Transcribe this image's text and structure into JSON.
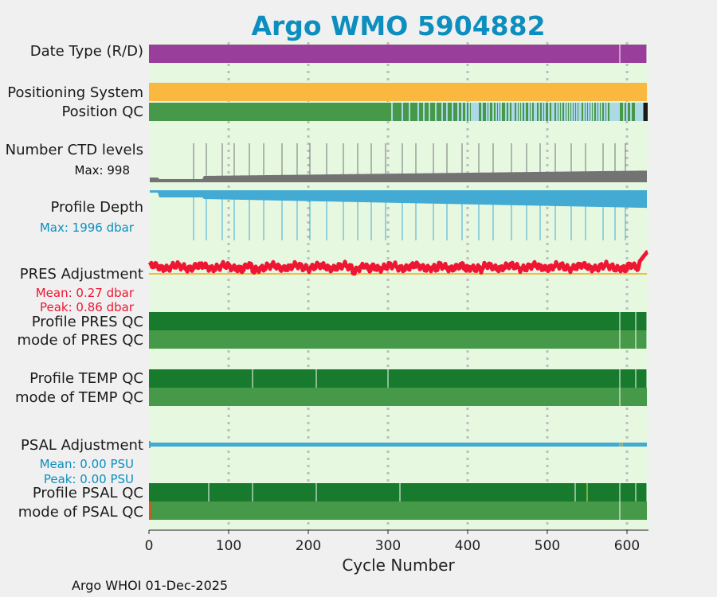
{
  "chart_data": {
    "type": "timeline",
    "title": "Argo WMO 5904882",
    "xlabel": "Cycle Number",
    "xlim": [
      0,
      627
    ],
    "xticks": [
      "0",
      "100",
      "200",
      "300",
      "400",
      "500",
      "600"
    ],
    "footer": "Argo WHOI 01-Dec-2025",
    "grid": "dotted vertical at each x tick",
    "colors": {
      "title": "#0c8ebf",
      "background": "#e6f8e0",
      "date_type": "#9a3e9b",
      "positioning": "#fbb841",
      "qc_good": "#47994a",
      "qc_dark": "#177a2d",
      "qc_light": "#add8e6",
      "ctd": "#737373",
      "depth": "#43aad3",
      "pres": "#ee1633",
      "pres_baseline": "#f5b942",
      "psal": "#43aad3",
      "max_depth_label": "#0c8ebf",
      "pres_label": "#ee1633"
    },
    "rows": {
      "date_type": {
        "label": "Date Type (R/D)"
      },
      "positioning": {
        "label": "Positioning System"
      },
      "position_qc": {
        "label": "Position QC"
      },
      "ctd_levels": {
        "label": "Number CTD levels",
        "max_label": "Max: 998",
        "max": 998
      },
      "profile_depth": {
        "label": "Profile Depth",
        "max_label": "Max: 1996 dbar",
        "max": 1996
      },
      "pres_adjustment": {
        "label": "PRES Adjustment",
        "mean_label": "Mean: 0.27 dbar",
        "peak_label": "Peak: 0.86 dbar",
        "mean": 0.27,
        "peak": 0.86
      },
      "profile_pres_qc": {
        "label": "Profile PRES QC"
      },
      "mode_pres_qc": {
        "label": "mode of PRES QC"
      },
      "profile_temp_qc": {
        "label": "Profile TEMP QC"
      },
      "mode_temp_qc": {
        "label": "mode of TEMP QC"
      },
      "psal_adjustment": {
        "label": "PSAL Adjustment",
        "mean_label": "Mean: 0.00 PSU",
        "peak_label": "Peak: 0.00 PSU",
        "mean": 0.0,
        "peak": 0.0
      },
      "profile_psal_qc": {
        "label": "Profile PSAL QC"
      },
      "mode_psal_qc": {
        "label": "mode of PSAL QC"
      }
    },
    "date_type_gaps": [
      591,
      625
    ],
    "pres_qc_gaps": [
      591,
      611,
      625
    ],
    "temp_qc_gaps": [
      130,
      210,
      300,
      591,
      611,
      625
    ],
    "psal_qc_gaps": [
      75,
      130,
      210,
      315,
      535,
      591,
      611,
      625
    ],
    "psal_qc_yellow": [
      550
    ],
    "position_qc_light_cycles": [
      305,
      318,
      327,
      338,
      345,
      352,
      360,
      368,
      374,
      381,
      388,
      393,
      398,
      402,
      408,
      418,
      424,
      427,
      432,
      436,
      439,
      442,
      448,
      452,
      456,
      458,
      462,
      465,
      468,
      472,
      477,
      480,
      484,
      486,
      490,
      494,
      497,
      502,
      506,
      508,
      512,
      515,
      518,
      522,
      525,
      528,
      531,
      534,
      537,
      540,
      542,
      546,
      549,
      552,
      555,
      558,
      562,
      565,
      568,
      572,
      575,
      580,
      586,
      590,
      596,
      600,
      605,
      611
    ],
    "position_qc_light_ranges": [
      [
        404,
        414
      ],
      [
        578,
        590
      ],
      [
        612,
        620
      ]
    ],
    "position_qc_dark_ranges": [
      [
        621,
        626
      ]
    ],
    "ctd_spikes": [
      56,
      72,
      92,
      107,
      126,
      144,
      167,
      186,
      202,
      223,
      244,
      262,
      279,
      297,
      318,
      335,
      357,
      374,
      393,
      414,
      432,
      455,
      474,
      491,
      510,
      530,
      548,
      570,
      585,
      598
    ],
    "depth_spikes": [
      56,
      72,
      92,
      107,
      126,
      144,
      167,
      186,
      202,
      223,
      244,
      262,
      279,
      297,
      318,
      335,
      357,
      374,
      393,
      414,
      432,
      455,
      474,
      491,
      510,
      530,
      548,
      570,
      585,
      598
    ],
    "pres_dips": [
      [
        118,
        0.12
      ],
      [
        132,
        0.08
      ],
      [
        258,
        0.1
      ],
      [
        276,
        0.07
      ],
      [
        360,
        0.13
      ],
      [
        398,
        0.12
      ],
      [
        418,
        0.15
      ],
      [
        598,
        0.12
      ]
    ],
    "psal_marks": [
      591,
      594
    ]
  }
}
